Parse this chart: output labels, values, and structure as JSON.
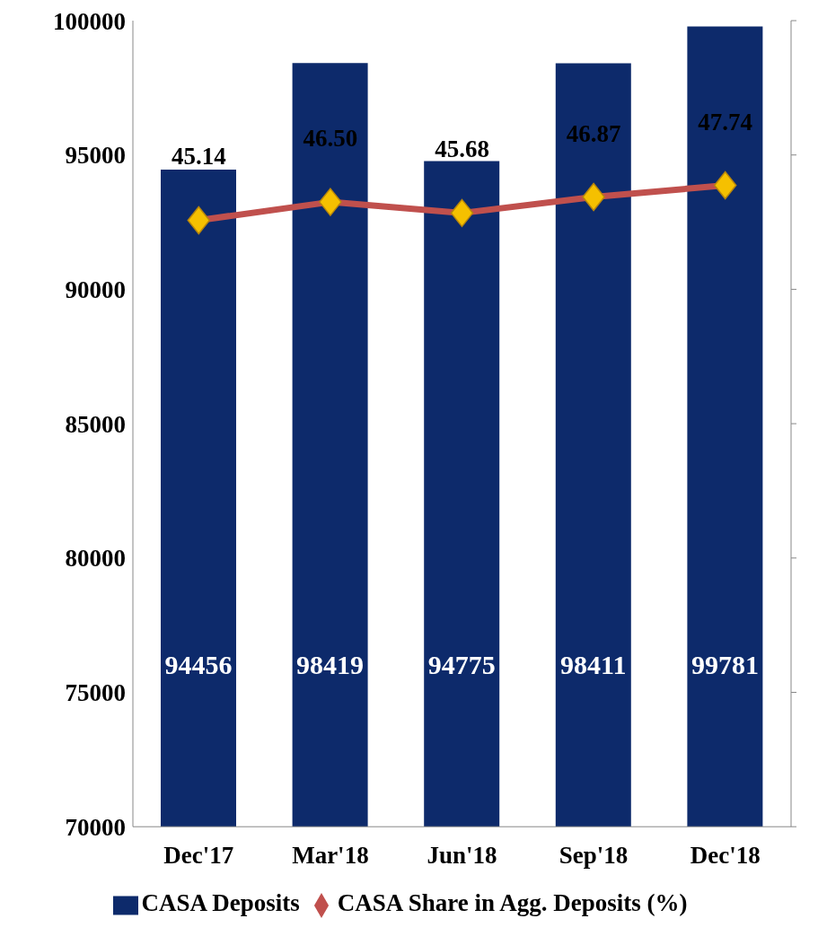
{
  "chart_data": {
    "type": "bar",
    "categories": [
      "Dec'17",
      "Mar'18",
      "Jun'18",
      "Sep'18",
      "Dec'18"
    ],
    "series": [
      {
        "name": "CASA Deposits",
        "color": "#0d2a6b",
        "values": [
          94456,
          98419,
          94775,
          98411,
          99781
        ],
        "value_labels": [
          "94456",
          "98419",
          "94775",
          "98411",
          "99781"
        ]
      },
      {
        "name": "CASA Share in Agg. Deposits (%)",
        "type": "line",
        "axis": "y2",
        "color": "#c0504d",
        "values": [
          45.14,
          46.5,
          45.68,
          46.87,
          47.74
        ],
        "value_labels": [
          "45.14",
          "46.50",
          "45.68",
          "46.87",
          "47.74"
        ]
      }
    ],
    "ylim": [
      70000,
      100000
    ],
    "yticks": [
      70000,
      75000,
      80000,
      85000,
      90000,
      95000,
      100000
    ],
    "y2lim": [
      0,
      60
    ],
    "y2ticks": [
      {
        "value": 0,
        "label": null
      },
      {
        "value": 10,
        "label": null
      },
      {
        "value": 20,
        "label": null
      },
      {
        "value": 30,
        "label": null
      },
      {
        "value": 40,
        "label": null
      },
      {
        "value": 50,
        "label": null
      },
      {
        "value": 60,
        "label": null
      }
    ],
    "marker": "diamond",
    "grid": false,
    "legend": "bottom"
  }
}
